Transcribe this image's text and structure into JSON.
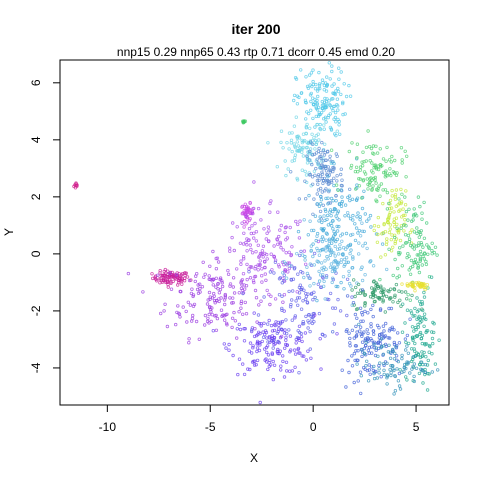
{
  "chart_data": {
    "type": "scatter",
    "title": "iter 200",
    "subtitle": "nnp15 0.29 nnp65 0.43 rtp 0.71 dcorr 0.45 emd 0.20",
    "xlabel": "X",
    "ylabel": "Y",
    "xlim": [
      -12.3,
      6.6
    ],
    "ylim": [
      -5.3,
      6.8
    ],
    "xticks": [
      -10,
      -5,
      0,
      5
    ],
    "xtick_labels": [
      "-10",
      "-5",
      "0",
      "5"
    ],
    "yticks": [
      -4,
      -2,
      0,
      2,
      4,
      6
    ],
    "ytick_labels": [
      "-4",
      "-2",
      "0",
      "2",
      "4",
      "6"
    ],
    "grid": false,
    "legend": "none",
    "marker": "open-circle",
    "clusters": [
      {
        "name": "magenta-outlier",
        "color": "#d0208c",
        "cx": -11.5,
        "cy": 2.4,
        "sx": 0.06,
        "sy": 0.06,
        "n": 10
      },
      {
        "name": "magenta-tail",
        "color": "#c81e9a",
        "cx": -6.9,
        "cy": -0.85,
        "sx": 0.45,
        "sy": 0.12,
        "n": 90
      },
      {
        "name": "purple-left",
        "color": "#9a3ae0",
        "cx": -4.8,
        "cy": -1.5,
        "sx": 1.2,
        "sy": 0.7,
        "n": 160
      },
      {
        "name": "violet-blob",
        "color": "#c84ae6",
        "cx": -3.2,
        "cy": 1.45,
        "sx": 0.15,
        "sy": 0.15,
        "n": 45
      },
      {
        "name": "purple-mid",
        "color": "#a54ae8",
        "cx": -2.4,
        "cy": -0.1,
        "sx": 1.1,
        "sy": 0.8,
        "n": 150
      },
      {
        "name": "violet-low",
        "color": "#6a3ef0",
        "cx": -2.0,
        "cy": -3.2,
        "sx": 1.0,
        "sy": 0.5,
        "n": 160
      },
      {
        "name": "indigo-mid",
        "color": "#6060e8",
        "cx": -0.5,
        "cy": -1.6,
        "sx": 1.0,
        "sy": 0.9,
        "n": 120
      },
      {
        "name": "cyan-top",
        "color": "#50c8e8",
        "cx": 0.4,
        "cy": 5.3,
        "sx": 0.6,
        "sy": 0.6,
        "n": 150
      },
      {
        "name": "cyan-upper",
        "color": "#70d6e6",
        "cx": -0.4,
        "cy": 3.7,
        "sx": 0.6,
        "sy": 0.5,
        "n": 110
      },
      {
        "name": "steel-center",
        "color": "#5a8ad0",
        "cx": 0.6,
        "cy": 2.8,
        "sx": 0.45,
        "sy": 0.5,
        "n": 110
      },
      {
        "name": "teal-center",
        "color": "#40a8d8",
        "cx": 1.2,
        "cy": 1.0,
        "sx": 0.8,
        "sy": 0.9,
        "n": 150
      },
      {
        "name": "lightblue-mid",
        "color": "#60b4e0",
        "cx": 0.9,
        "cy": -0.3,
        "sx": 0.9,
        "sy": 0.6,
        "n": 120
      },
      {
        "name": "green-upper",
        "color": "#50d070",
        "cx": 3.0,
        "cy": 3.0,
        "sx": 0.7,
        "sy": 0.5,
        "n": 110
      },
      {
        "name": "green-spot",
        "color": "#3cc860",
        "cx": -3.4,
        "cy": 4.6,
        "sx": 0.05,
        "sy": 0.05,
        "n": 8
      },
      {
        "name": "yellowgreen-right",
        "color": "#c4e838",
        "cx": 3.8,
        "cy": 1.0,
        "sx": 0.35,
        "sy": 0.6,
        "n": 80
      },
      {
        "name": "green-right",
        "color": "#40c878",
        "cx": 4.9,
        "cy": 0.3,
        "sx": 0.5,
        "sy": 0.8,
        "n": 110
      },
      {
        "name": "yellow-stub",
        "color": "#e8e030",
        "cx": 5.1,
        "cy": -1.1,
        "sx": 0.3,
        "sy": 0.08,
        "n": 40
      },
      {
        "name": "green-band",
        "color": "#2c9a68",
        "cx": 3.3,
        "cy": -1.4,
        "sx": 0.7,
        "sy": 0.25,
        "n": 80
      },
      {
        "name": "blue-low",
        "color": "#4060d8",
        "cx": 2.8,
        "cy": -3.0,
        "sx": 0.8,
        "sy": 0.7,
        "n": 150
      },
      {
        "name": "teal-low",
        "color": "#20a890",
        "cx": 5.2,
        "cy": -3.0,
        "sx": 0.35,
        "sy": 0.8,
        "n": 110
      },
      {
        "name": "bluegreen-bottom",
        "color": "#3090b8",
        "cx": 3.8,
        "cy": -3.9,
        "sx": 0.8,
        "sy": 0.4,
        "n": 90
      }
    ]
  }
}
